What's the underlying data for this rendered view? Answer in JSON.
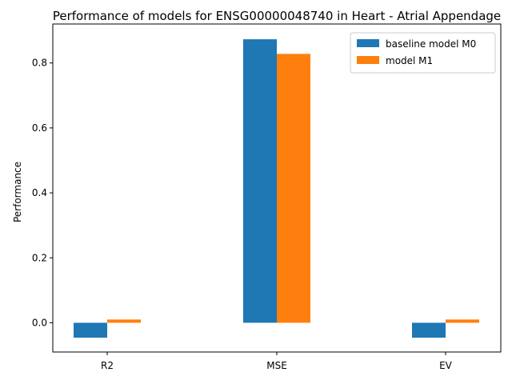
{
  "chart_data": {
    "type": "bar",
    "title": "Performance of models for ENSG00000048740 in Heart - Atrial Appendage",
    "xlabel": "",
    "ylabel": "Performance",
    "categories": [
      "R2",
      "MSE",
      "EV"
    ],
    "series": [
      {
        "name": "baseline model M0",
        "values": [
          -0.046,
          0.873,
          -0.046
        ],
        "color": "#1f77b4"
      },
      {
        "name": "model M1",
        "values": [
          0.01,
          0.828,
          0.01
        ],
        "color": "#ff7f0e"
      }
    ],
    "ylim": [
      -0.09,
      0.92
    ],
    "yticks": [
      "0.0",
      "0.2",
      "0.4",
      "0.6",
      "0.8"
    ],
    "ytick_values": [
      0.0,
      0.2,
      0.4,
      0.6,
      0.8
    ],
    "grid": false,
    "legend_position": "top-right"
  }
}
